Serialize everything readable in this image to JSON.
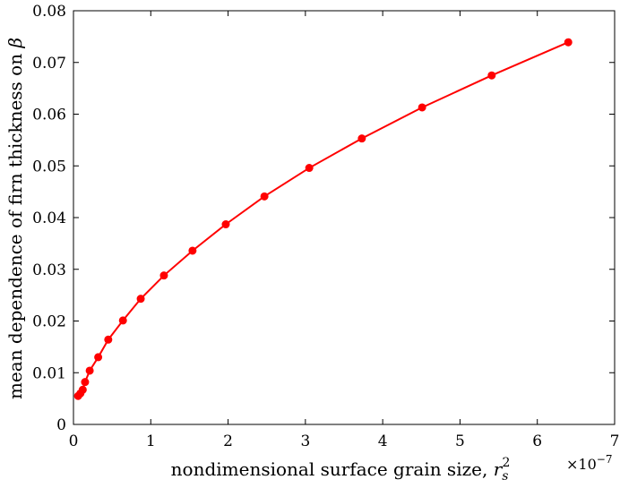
{
  "chart_data": {
    "type": "line",
    "title": "",
    "xlabel": "nondimensional surface grain size, ",
    "xlabel_math": "r_s^2",
    "x_exponent_label": "×10",
    "x_exponent_power": "−7",
    "ylabel": "mean dependence of firn thickness on ",
    "ylabel_math": "β",
    "xlim": [
      0,
      7
    ],
    "ylim": [
      0,
      0.08
    ],
    "x_scale_factor": 1e-07,
    "xticks": [
      0,
      1,
      2,
      3,
      4,
      5,
      6,
      7
    ],
    "xtick_labels": [
      "0",
      "1",
      "2",
      "3",
      "4",
      "5",
      "6",
      "7"
    ],
    "yticks": [
      0,
      0.01,
      0.02,
      0.03,
      0.04,
      0.05,
      0.06,
      0.07,
      0.08
    ],
    "ytick_labels": [
      "0",
      "0.01",
      "0.02",
      "0.03",
      "0.04",
      "0.05",
      "0.06",
      "0.07",
      "0.08"
    ],
    "grid": false,
    "series": [
      {
        "color": "#ff0000",
        "marker": "circle",
        "x": [
          0.06,
          0.09,
          0.12,
          0.15,
          0.21,
          0.32,
          0.45,
          0.64,
          0.87,
          1.17,
          1.54,
          1.97,
          2.47,
          3.05,
          3.73,
          4.51,
          5.41,
          6.4
        ],
        "y": [
          0.0055,
          0.006,
          0.0067,
          0.0082,
          0.0104,
          0.013,
          0.0164,
          0.0201,
          0.0243,
          0.0288,
          0.0336,
          0.0387,
          0.0441,
          0.0496,
          0.0553,
          0.0613,
          0.0675,
          0.0739
        ]
      }
    ]
  }
}
